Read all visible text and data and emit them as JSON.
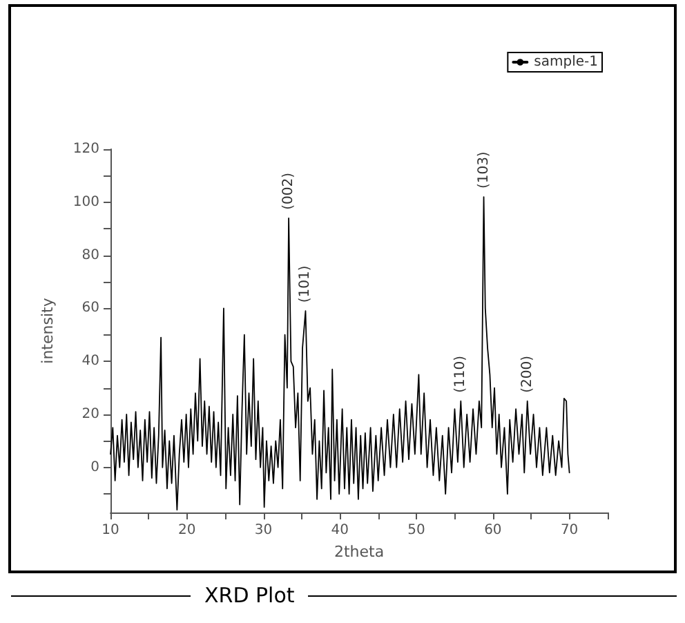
{
  "chart_data": {
    "type": "line",
    "title": "XRD Plot",
    "xlabel": "2theta",
    "ylabel": "intensity",
    "xlim": [
      10,
      75
    ],
    "xticks": [
      10,
      {
        "value": 15,
        "label": null
      },
      20,
      {
        "value": 25,
        "label": null
      },
      30,
      {
        "value": 35,
        "label": null
      },
      40,
      {
        "value": 45,
        "label": null
      },
      50,
      {
        "value": 55,
        "label": null
      },
      60,
      {
        "value": 65,
        "label": null
      },
      70,
      {
        "value": 75,
        "label": null
      }
    ],
    "ylim": [
      -17,
      120
    ],
    "yticks": [
      {
        "value": -10,
        "label": null
      },
      0,
      {
        "value": 10,
        "label": null
      },
      20,
      {
        "value": 30,
        "label": null
      },
      40,
      {
        "value": 50,
        "label": null
      },
      60,
      {
        "value": 70,
        "label": null
      },
      80,
      {
        "value": 90,
        "label": null
      },
      100,
      {
        "value": 110,
        "label": null
      },
      120
    ],
    "grid": false,
    "legend": "top right",
    "marker": "none",
    "line_style": "solid",
    "annotations": [
      {
        "text": "(002)",
        "x": 33.3,
        "y": 94
      },
      {
        "text": "(101)",
        "x": 35.5,
        "y": 59
      },
      {
        "text": "(110)",
        "x": 55.8,
        "y": 25
      },
      {
        "text": "(103)",
        "x": 58.8,
        "y": 102
      },
      {
        "text": "(200)",
        "x": 64.5,
        "y": 25
      }
    ],
    "series": [
      {
        "name": "sample-1",
        "color": "#000000",
        "x": [
          10,
          10.3,
          10.6,
          10.9,
          11.2,
          11.5,
          11.8,
          12.1,
          12.4,
          12.7,
          13,
          13.3,
          13.6,
          13.9,
          14.2,
          14.5,
          14.8,
          15.1,
          15.4,
          15.7,
          16,
          16.3,
          16.6,
          16.8,
          17.1,
          17.4,
          17.7,
          18,
          18.3,
          18.7,
          19,
          19.3,
          19.6,
          19.9,
          20.2,
          20.5,
          20.8,
          21.1,
          21.4,
          21.7,
          22,
          22.3,
          22.6,
          22.9,
          23.2,
          23.5,
          23.8,
          24.1,
          24.4,
          24.8,
          25.1,
          25.4,
          25.7,
          26,
          26.3,
          26.6,
          26.9,
          27.2,
          27.5,
          27.8,
          28.1,
          28.4,
          28.7,
          29,
          29.3,
          29.6,
          29.9,
          30.1,
          30.4,
          30.7,
          31,
          31.3,
          31.6,
          31.9,
          32.2,
          32.5,
          32.8,
          33.1,
          33.3,
          33.6,
          33.9,
          34.2,
          34.5,
          34.8,
          35.1,
          35.5,
          35.8,
          36.1,
          36.4,
          36.7,
          37,
          37.3,
          37.6,
          37.9,
          38.2,
          38.5,
          38.8,
          39,
          39.3,
          39.6,
          39.9,
          40.3,
          40.6,
          40.9,
          41.2,
          41.5,
          41.8,
          42.1,
          42.4,
          42.7,
          43,
          43.3,
          43.6,
          44,
          44.3,
          44.7,
          45,
          45.4,
          45.8,
          46.2,
          46.6,
          47,
          47.4,
          47.8,
          48.2,
          48.6,
          49,
          49.4,
          49.8,
          50.3,
          50.6,
          51,
          51.4,
          51.8,
          52.2,
          52.6,
          53,
          53.4,
          53.8,
          54.2,
          54.6,
          55,
          55.4,
          55.8,
          56.2,
          56.6,
          57,
          57.4,
          57.8,
          58.2,
          58.5,
          58.8,
          59,
          59.3,
          59.6,
          59.9,
          60.2,
          60.5,
          60.8,
          61.1,
          61.5,
          61.9,
          62.2,
          62.6,
          63,
          63.4,
          63.8,
          64.1,
          64.5,
          64.9,
          65.3,
          65.7,
          66.1,
          66.5,
          67,
          67.4,
          67.8,
          68.2,
          68.6,
          69,
          69.3,
          69.6,
          69.8,
          70
        ],
        "values": [
          5,
          15,
          -5,
          12,
          0,
          18,
          2,
          20,
          -3,
          17,
          3,
          21,
          0,
          14,
          -5,
          18,
          2,
          21,
          -4,
          15,
          -6,
          12,
          49,
          0,
          14,
          -8,
          10,
          -6,
          12,
          -16,
          5,
          18,
          2,
          20,
          0,
          22,
          5,
          28,
          10,
          41,
          8,
          25,
          5,
          23,
          2,
          21,
          0,
          17,
          -3,
          60,
          -8,
          15,
          -3,
          20,
          -5,
          27,
          -14,
          22,
          50,
          5,
          28,
          8,
          41,
          3,
          25,
          0,
          15,
          -15,
          10,
          -5,
          8,
          -6,
          10,
          0,
          18,
          -8,
          50,
          30,
          94,
          40,
          38,
          15,
          28,
          -5,
          45,
          59,
          25,
          30,
          5,
          18,
          -12,
          10,
          -8,
          29,
          -2,
          15,
          -12,
          37,
          -5,
          18,
          -10,
          22,
          -8,
          15,
          -10,
          18,
          -6,
          15,
          -12,
          12,
          -8,
          13,
          -6,
          15,
          -9,
          12,
          -5,
          15,
          -3,
          18,
          0,
          20,
          0,
          22,
          2,
          25,
          3,
          24,
          5,
          35,
          5,
          28,
          0,
          18,
          -3,
          15,
          -5,
          12,
          -10,
          15,
          -2,
          22,
          2,
          25,
          0,
          20,
          2,
          22,
          5,
          25,
          15,
          102,
          60,
          45,
          35,
          15,
          30,
          5,
          20,
          0,
          15,
          -10,
          18,
          2,
          22,
          5,
          20,
          -2,
          25,
          5,
          20,
          0,
          15,
          -3,
          15,
          -2,
          12,
          -3,
          10,
          0,
          26,
          25,
          5,
          -2
        ]
      }
    ]
  }
}
